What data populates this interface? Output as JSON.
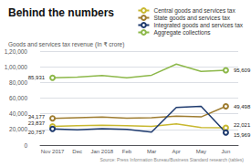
{
  "chart_data": {
    "type": "line",
    "title": "Behind the numbers",
    "subtitle": "Goods and services tax revenue (In ₹ crore)",
    "source": "Source: Press Information Bureau/Business Standard research (tables)",
    "categories": [
      "Nov 2017",
      "Dec",
      "Jan 2018",
      "Feb",
      "Mar",
      "Apr",
      "May",
      "Jun"
    ],
    "series": [
      {
        "name": "Central goods and services tax",
        "color": "#c8b830",
        "values": [
          23837,
          24900,
          25300,
          24700,
          24000,
          27000,
          22500,
          22021
        ],
        "value_labels": [
          "23,837",
          null,
          null,
          null,
          null,
          null,
          null,
          "22,021"
        ]
      },
      {
        "name": "State goods and services tax",
        "color": "#9e7c30",
        "values": [
          34177,
          35000,
          35800,
          34500,
          35000,
          37000,
          36000,
          49498
        ],
        "value_labels": [
          "34,177",
          null,
          null,
          null,
          null,
          null,
          null,
          "49,498"
        ]
      },
      {
        "name": "Integrated goods and services tax",
        "color": "#1e3a6e",
        "values": [
          20757,
          19500,
          21000,
          20000,
          16500,
          48000,
          49500,
          15969
        ],
        "value_labels": [
          "20,757",
          null,
          null,
          null,
          null,
          null,
          null,
          "15,969"
        ]
      },
      {
        "name": "Aggregate collections",
        "color": "#8db84a",
        "values": [
          85931,
          86703,
          88929,
          85962,
          89264,
          103458,
          94016,
          95609
        ],
        "value_labels": [
          "85,931",
          null,
          null,
          null,
          null,
          null,
          null,
          "95,609"
        ]
      }
    ],
    "ylim": [
      0,
      120000
    ],
    "yticks": [
      0,
      {
        "value": 20000,
        "label": "20,000"
      },
      {
        "value": 40000,
        "label": "40,000"
      },
      {
        "value": 60000,
        "label": "60,000"
      },
      {
        "value": 80000,
        "label": "80,000"
      },
      {
        "value": 100000,
        "label": "1,00,000"
      },
      {
        "value": 120000,
        "label": "1,20,000"
      }
    ],
    "grid": true,
    "legend": "upper right"
  }
}
